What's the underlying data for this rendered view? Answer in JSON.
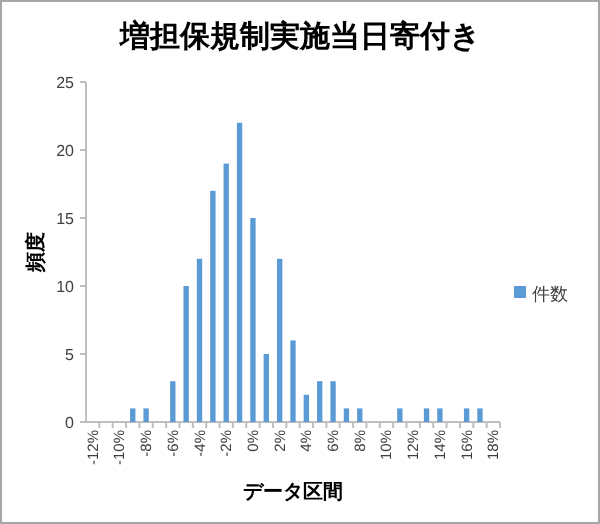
{
  "chart_data": {
    "type": "bar",
    "title": "増担保規制実施当日寄付き",
    "xlabel": "データ区間",
    "ylabel": "頻度",
    "categories": [
      "-12%",
      null,
      "-10%",
      null,
      "-8%",
      null,
      "-6%",
      null,
      "-4%",
      null,
      "-2%",
      null,
      "0%",
      null,
      "2%",
      null,
      "4%",
      null,
      "6%",
      null,
      "8%",
      null,
      "10%",
      null,
      "12%",
      null,
      "14%",
      null,
      "16%",
      null,
      "18%"
    ],
    "series": [
      {
        "name": "件数",
        "color": "#5b9bd5",
        "values": [
          0,
          0,
          0,
          1,
          1,
          0,
          3,
          10,
          12,
          17,
          19,
          22,
          15,
          5,
          12,
          6,
          2,
          3,
          3,
          1,
          1,
          0,
          0,
          1,
          0,
          1,
          1,
          0,
          1,
          1,
          0
        ]
      }
    ],
    "ylim": [
      0,
      25
    ],
    "yticks": [
      0,
      5,
      10,
      15,
      20,
      25
    ],
    "legend": "right"
  }
}
